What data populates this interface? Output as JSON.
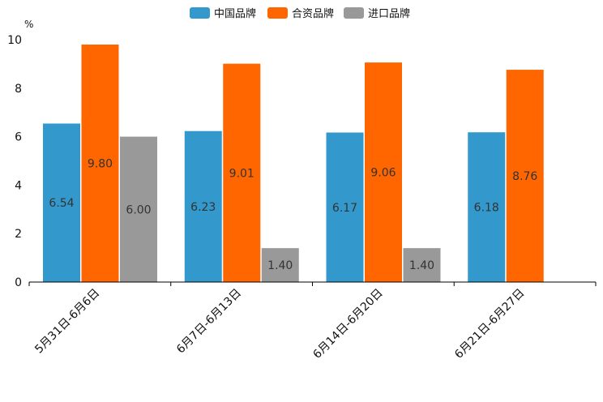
{
  "chart_data": {
    "type": "bar",
    "unit": "%",
    "ylim": [
      0,
      10
    ],
    "yticks": [
      0,
      2,
      4,
      6,
      8,
      10
    ],
    "categories": [
      "5月31日-6月6日",
      "6月7日-6月13日",
      "6月14日-6月20日",
      "6月21日-6月27日"
    ],
    "series": [
      {
        "name": "中国品牌",
        "color": "#3399cc",
        "values": [
          6.54,
          6.23,
          6.17,
          6.18
        ],
        "labels": [
          "6.54",
          "6.23",
          "6.17",
          "6.18"
        ]
      },
      {
        "name": "合资品牌",
        "color": "#ff6600",
        "values": [
          9.8,
          9.01,
          9.06,
          8.76
        ],
        "labels": [
          "9.80",
          "9.01",
          "9.06",
          "8.76"
        ]
      },
      {
        "name": "进口品牌",
        "color": "#999999",
        "values": [
          6.0,
          1.4,
          1.4,
          null
        ],
        "labels": [
          "6.00",
          "1.40",
          "1.40",
          ""
        ]
      }
    ],
    "legend_position": "top-center"
  }
}
